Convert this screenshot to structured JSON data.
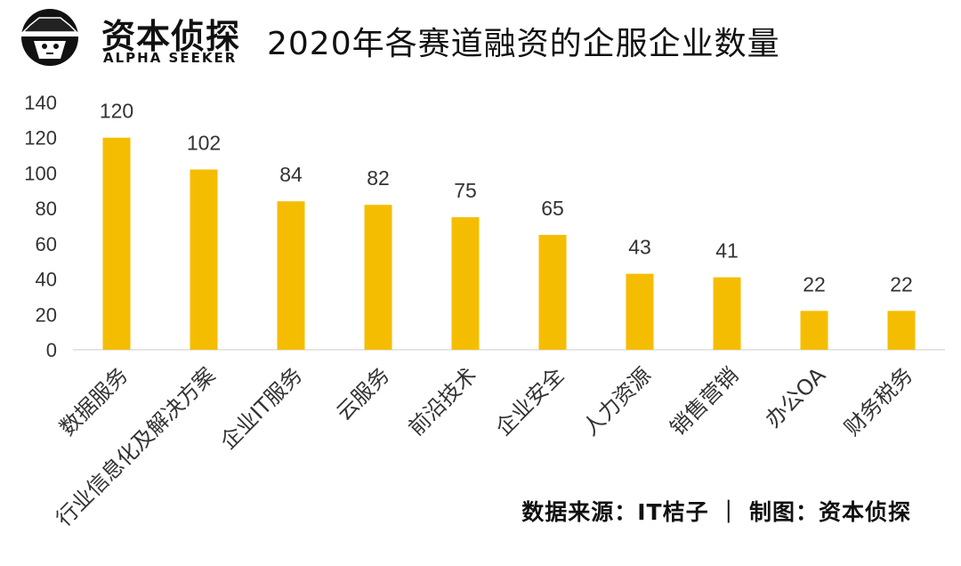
{
  "brand": {
    "name": "资本侦探",
    "subtitle": "ALPHA SEEKER"
  },
  "source_note": "数据来源：IT桔子 ｜ 制图：资本侦探",
  "colors": {
    "bar": "#F5BD02",
    "text": "#333333",
    "grid": "#cccccc"
  },
  "chart_data": {
    "type": "bar",
    "title": "2020年各赛道融资的企服企业数量",
    "xlabel": "",
    "ylabel": "",
    "categories": [
      "数据服务",
      "行业信息化及解决方案",
      "企业IT服务",
      "云服务",
      "前沿技术",
      "企业安全",
      "人力资源",
      "销售营销",
      "办公OA",
      "财务税务"
    ],
    "values": [
      120,
      102,
      84,
      82,
      75,
      65,
      43,
      41,
      22,
      22
    ],
    "ylim": [
      0,
      140
    ],
    "yticks": [
      "0",
      "20",
      "40",
      "60",
      "80",
      "100",
      "120",
      "140"
    ],
    "data_labels": [
      "120",
      "102",
      "84",
      "82",
      "75",
      "65",
      "43",
      "41",
      "22",
      "22"
    ],
    "grid": false,
    "legend": "none"
  }
}
